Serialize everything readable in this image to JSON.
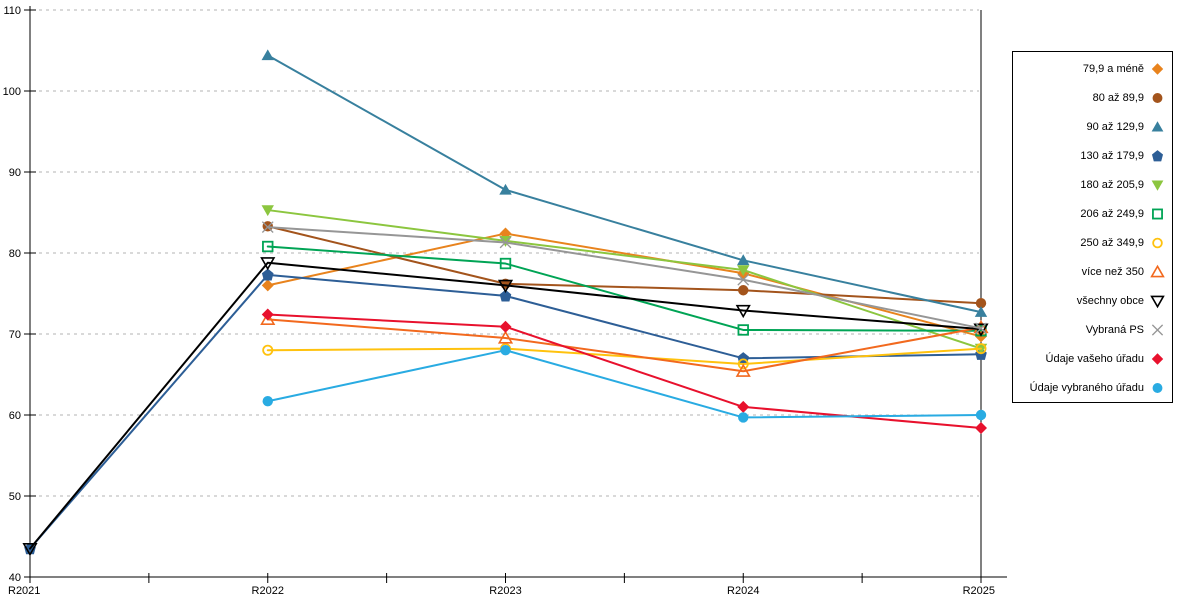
{
  "chart_data": {
    "type": "line",
    "title": "",
    "xlabel": "",
    "ylabel": "",
    "categories": [
      "R2021",
      "R2022",
      "R2023",
      "R2024",
      "R2025"
    ],
    "ylim": [
      40,
      110
    ],
    "y_ticks": [
      "40",
      "50",
      "60",
      "70",
      "80",
      "90",
      "100",
      "110"
    ],
    "grid": "horizontal-dashed",
    "legend_position": "right-outside",
    "colors": {
      "gridline": "#b3b3b3",
      "axis": "#000000",
      "background": "#ffffff"
    },
    "series": [
      {
        "name": "79,9 a méně",
        "color": "#E8831D",
        "marker": "diamond",
        "filled": true,
        "values": [
          null,
          76.0,
          82.4,
          77.5,
          69.7
        ]
      },
      {
        "name": "80 až 89,9",
        "color": "#A3541C",
        "marker": "circle",
        "filled": true,
        "values": [
          null,
          83.3,
          76.2,
          75.4,
          73.8
        ]
      },
      {
        "name": "90 až 129,9",
        "color": "#38809E",
        "marker": "triangle-up",
        "filled": true,
        "values": [
          null,
          104.4,
          87.8,
          79.1,
          72.7
        ]
      },
      {
        "name": "130 až 179,9",
        "color": "#2D5E96",
        "marker": "pentagon",
        "filled": true,
        "values": [
          43.5,
          77.3,
          74.7,
          67.0,
          67.5
        ]
      },
      {
        "name": "180 až 205,9",
        "color": "#8CC63F",
        "marker": "triangle-down",
        "filled": true,
        "values": [
          null,
          85.3,
          81.5,
          77.9,
          68.2
        ]
      },
      {
        "name": "206 až 249,9",
        "color": "#00A455",
        "marker": "square",
        "filled": false,
        "values": [
          null,
          80.8,
          78.7,
          70.5,
          70.4
        ]
      },
      {
        "name": "250 až 349,9",
        "color": "#FFC20E",
        "marker": "circle",
        "filled": false,
        "values": [
          null,
          68.0,
          68.2,
          66.3,
          68.2
        ]
      },
      {
        "name": "více než 350",
        "color": "#F2691E",
        "marker": "triangle-up",
        "filled": false,
        "values": [
          null,
          71.8,
          69.5,
          65.4,
          70.8
        ]
      },
      {
        "name": "všechny obce",
        "color": "#000000",
        "marker": "triangle-down",
        "filled": false,
        "values": [
          43.5,
          78.8,
          76.0,
          72.9,
          70.6
        ]
      },
      {
        "name": "Vybraná PS",
        "color": "#969696",
        "marker": "x",
        "filled": false,
        "values": [
          null,
          83.2,
          81.3,
          76.7,
          70.7
        ]
      },
      {
        "name": "Údaje vašeho úřadu",
        "color": "#E8112D",
        "marker": "diamond",
        "filled": true,
        "values": [
          null,
          72.4,
          70.9,
          61.0,
          58.4
        ]
      },
      {
        "name": "Údaje vybraného úřadu",
        "color": "#29ABE2",
        "marker": "circle",
        "filled": true,
        "values": [
          null,
          61.7,
          68.0,
          59.7,
          60.0
        ]
      }
    ]
  }
}
